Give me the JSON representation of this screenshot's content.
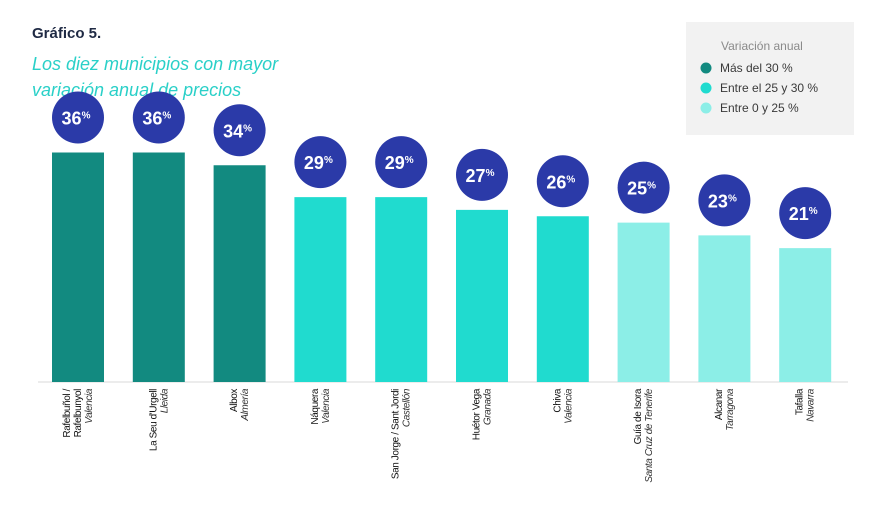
{
  "header": {
    "chart_number": "Gráfico 5.",
    "title_line1": "Los diez municipios con mayor",
    "title_line2": "variación anual de precios"
  },
  "chart_data": {
    "type": "bar",
    "title": "Los diez municipios con mayor variación anual de precios",
    "unit": "%",
    "ylim": [
      0,
      40
    ],
    "grid": false,
    "legend_position": "top-right",
    "legend": {
      "title": "Variación anual",
      "items": [
        {
          "label": "Más del 30 %",
          "color": "#128a80"
        },
        {
          "label": "Entre el 25 y 30 %",
          "color": "#20dbcf"
        },
        {
          "label": "Entre 0 y 25 %",
          "color": "#8ceee7"
        }
      ]
    },
    "badge_color": "#2b3aa8",
    "categories": [
      {
        "name": "Rafelbuñol / Rafelbunyol",
        "lines": [
          "Rafelbuñol /",
          "Rafelbunyol"
        ],
        "province": "Valencia",
        "value": 36,
        "label": "36",
        "color": "#128a80"
      },
      {
        "name": "La Seu d'Urgell",
        "lines": [
          "La Seu d'Urgell"
        ],
        "province": "Lleida",
        "value": 36,
        "label": "36",
        "color": "#128a80"
      },
      {
        "name": "Albox",
        "lines": [
          "Albox"
        ],
        "province": "Almería",
        "value": 34,
        "label": "34",
        "color": "#128a80"
      },
      {
        "name": "Náquera",
        "lines": [
          "Náquera"
        ],
        "province": "Valencia",
        "value": 29,
        "label": "29",
        "color": "#20dbcf"
      },
      {
        "name": "San Jorge / Sant Jordi",
        "lines": [
          "San Jorge / Sant Jordi"
        ],
        "province": "Castellón",
        "value": 29,
        "label": "29",
        "color": "#20dbcf"
      },
      {
        "name": "Huétor Vega",
        "lines": [
          "Huétor Vega"
        ],
        "province": "Granada",
        "value": 27,
        "label": "27",
        "color": "#20dbcf"
      },
      {
        "name": "Chiva",
        "lines": [
          "Chiva"
        ],
        "province": "Valencia",
        "value": 26,
        "label": "26",
        "color": "#20dbcf"
      },
      {
        "name": "Guía de Isora",
        "lines": [
          "Guía de Isora"
        ],
        "province": "Santa Cruz de Tenerife",
        "value": 25,
        "label": "25",
        "color": "#8ceee7"
      },
      {
        "name": "Alcanar",
        "lines": [
          "Alcanar"
        ],
        "province": "Tarragona",
        "value": 23,
        "label": "23",
        "color": "#8ceee7"
      },
      {
        "name": "Tafalla",
        "lines": [
          "Tafalla"
        ],
        "province": "Navarra",
        "value": 21,
        "label": "21",
        "color": "#8ceee7"
      }
    ]
  }
}
